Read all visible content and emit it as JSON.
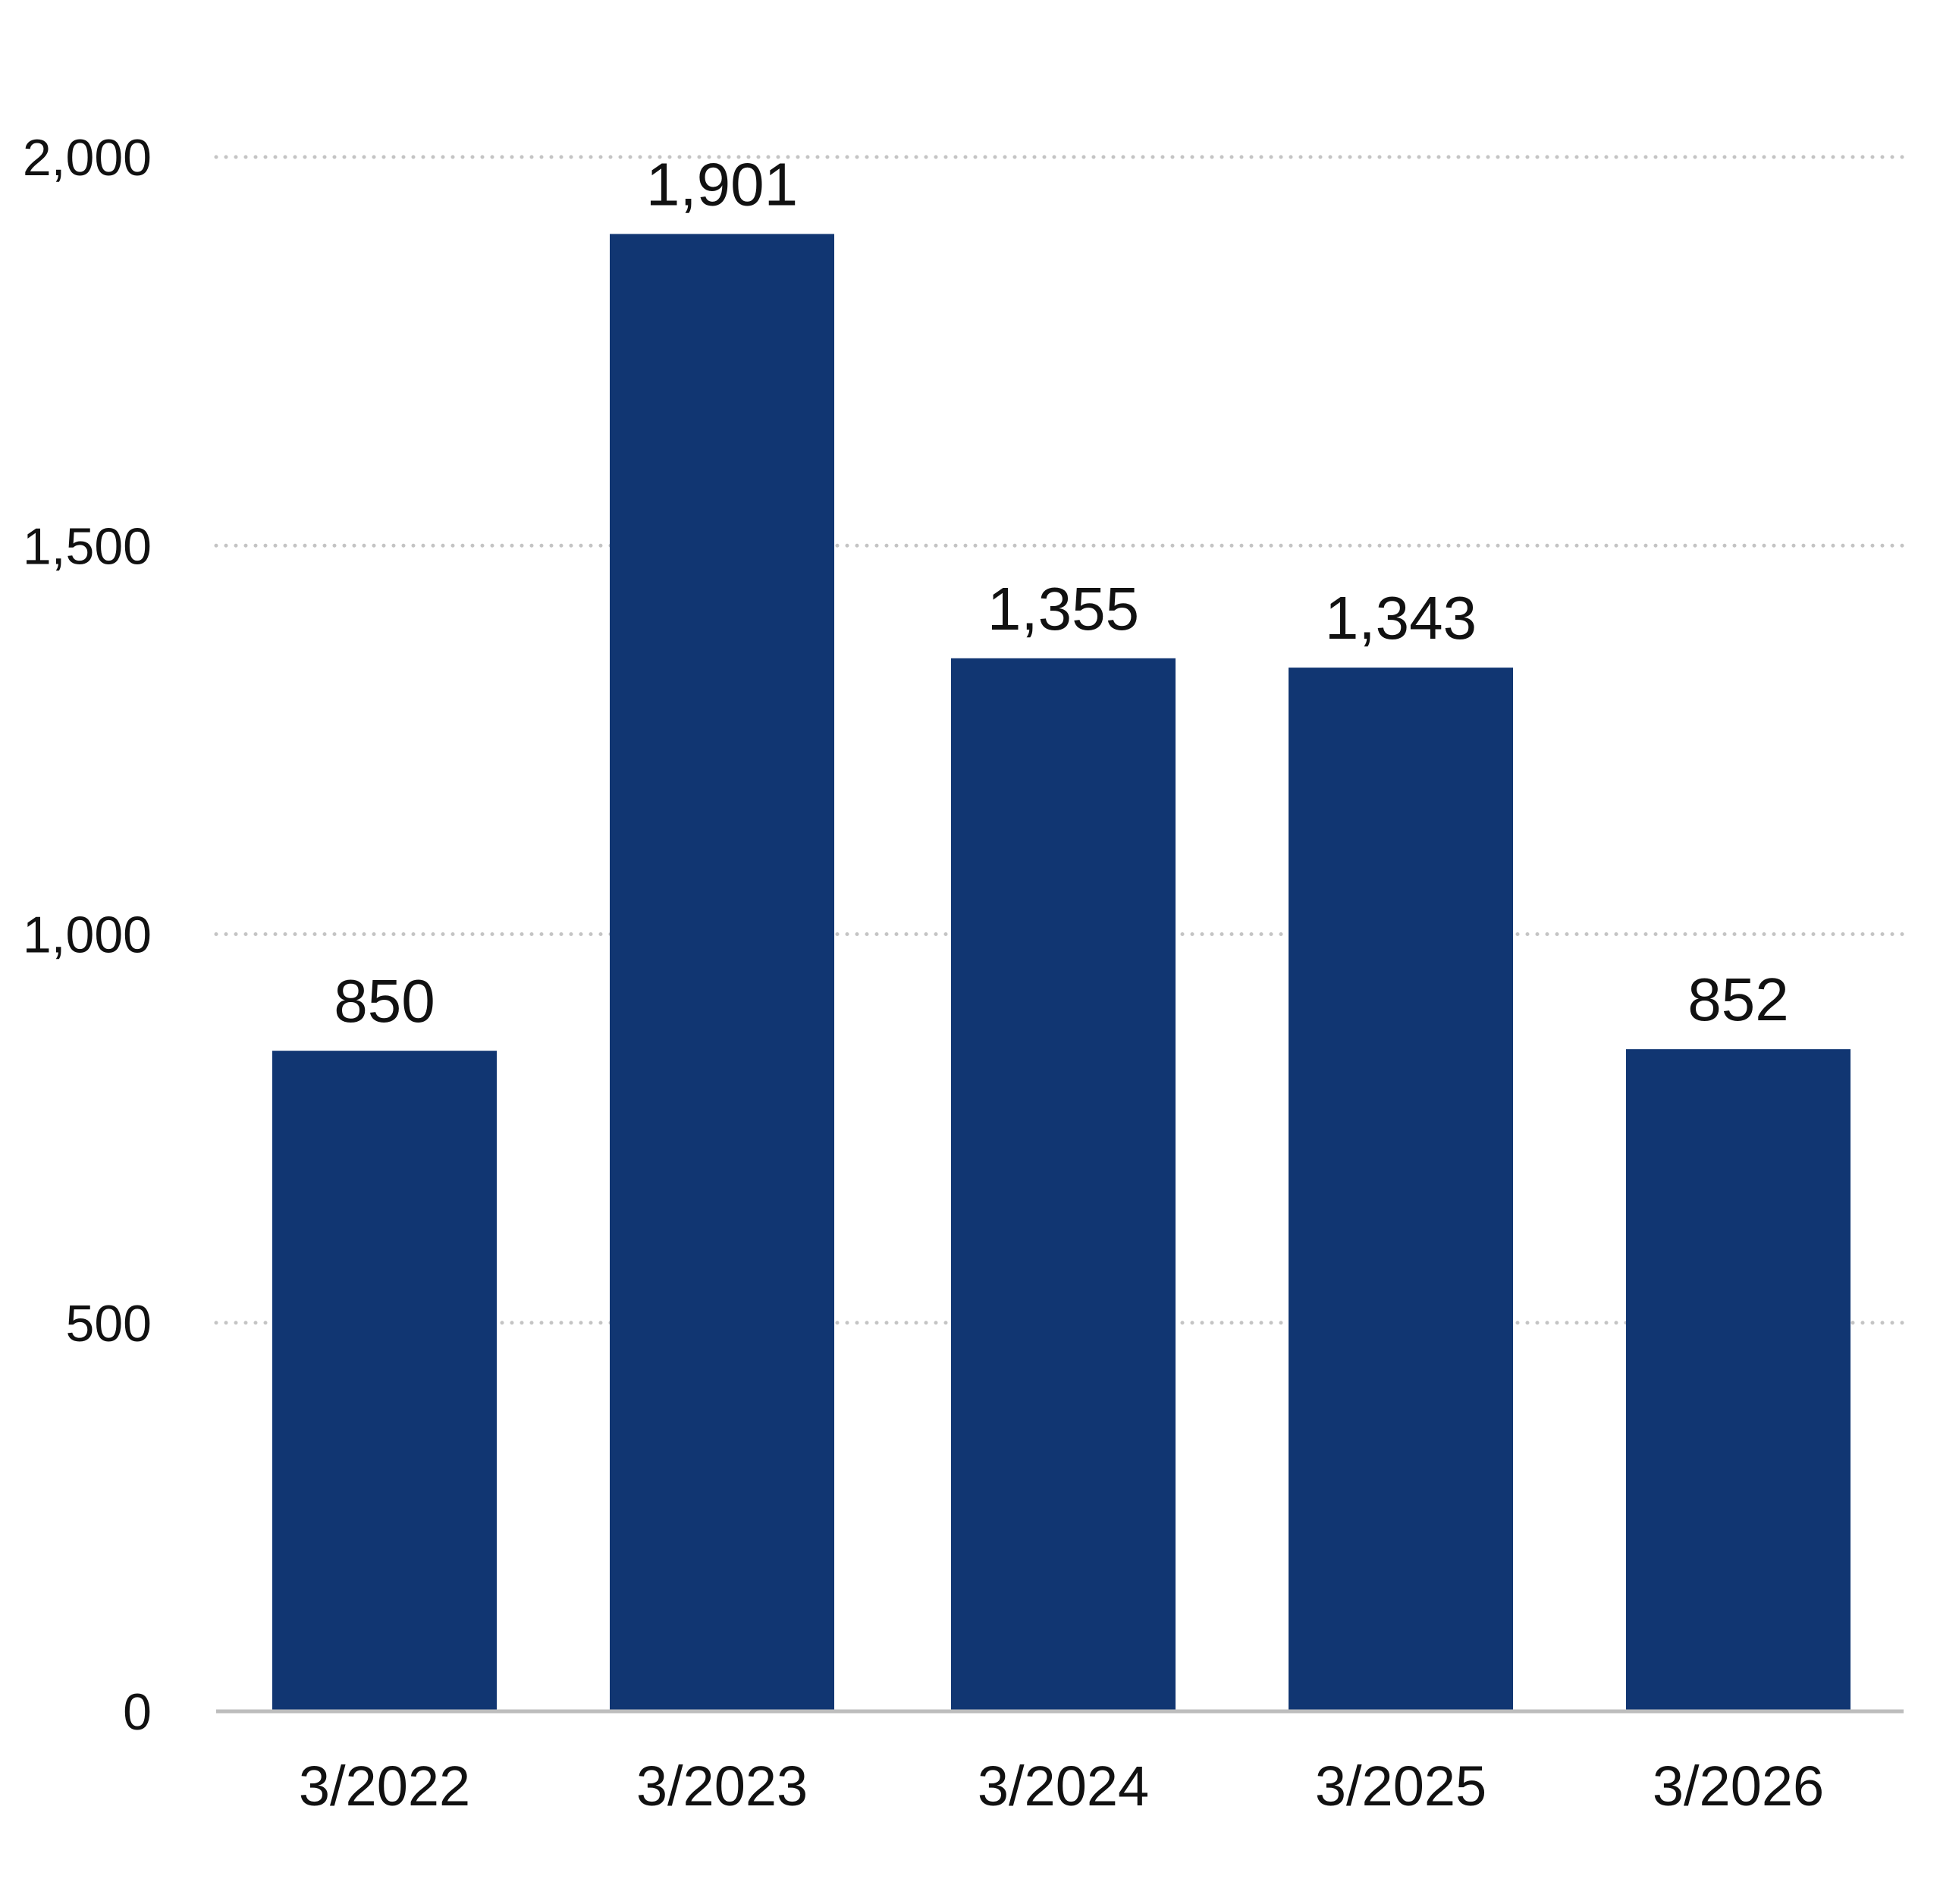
{
  "chart_data": {
    "type": "bar",
    "categories": [
      "3/2022",
      "3/2023",
      "3/2024",
      "3/2025",
      "3/2026"
    ],
    "values": [
      850,
      1901,
      1355,
      1343,
      852
    ],
    "value_labels": [
      "850",
      "1,901",
      "1,355",
      "1,343",
      "852"
    ],
    "title": "",
    "xlabel": "",
    "ylabel": "",
    "ylim": [
      0,
      2000
    ],
    "yticks": [
      0,
      500,
      1000,
      1500,
      2000
    ],
    "ytick_labels": [
      "0",
      "500",
      "1,000",
      "1,500",
      "2,000"
    ],
    "grid": true,
    "grid_style": "dotted",
    "legend": "none",
    "colors": {
      "bar": "#113672",
      "grid": "#c4c4c4",
      "axis": "#bdbdbd",
      "text": "#111111"
    }
  }
}
